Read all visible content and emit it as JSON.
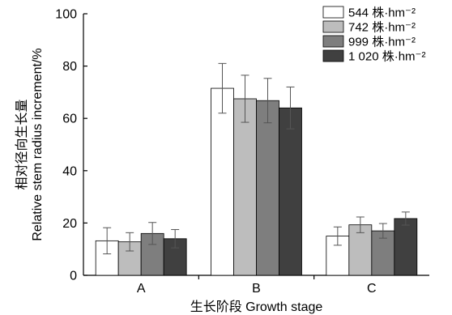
{
  "chart_data": {
    "type": "bar",
    "title": "",
    "xlabel": "生长阶段 Growth stage",
    "ylabel_cn": "相对径向生长量",
    "ylabel_en": "Relative stem radius increment/%",
    "ylim": [
      0,
      100
    ],
    "yticks": [
      0,
      20,
      40,
      60,
      80,
      100
    ],
    "categories": [
      "A",
      "B",
      "C"
    ],
    "legend_position": "top-right",
    "series": [
      {
        "name": "544 株·hm⁻²",
        "color": "#ffffff",
        "values": [
          13.2,
          71.5,
          15.0
        ],
        "errors": [
          5.0,
          9.5,
          3.5
        ]
      },
      {
        "name": "742 株·hm⁻²",
        "color": "#bdbdbd",
        "values": [
          12.8,
          67.5,
          19.3
        ],
        "errors": [
          3.5,
          9.0,
          3.0
        ]
      },
      {
        "name": "999 株·hm⁻²",
        "color": "#7e7e7e",
        "values": [
          16.0,
          66.8,
          17.0
        ],
        "errors": [
          4.2,
          8.5,
          2.8
        ]
      },
      {
        "name": "1 020 株·hm⁻²",
        "color": "#404040",
        "values": [
          14.0,
          64.0,
          21.7
        ],
        "errors": [
          3.5,
          8.0,
          2.5
        ]
      }
    ]
  }
}
